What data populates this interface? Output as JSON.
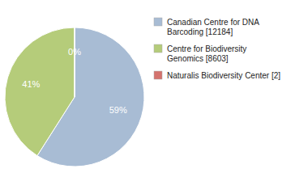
{
  "chart_data": {
    "type": "pie",
    "categories": [
      "Canadian Centre for DNA\nBarcoding [12184]",
      "Centre for Biodiversity\nGenomics [8603]",
      "Naturalis Biodiversity Center [2]"
    ],
    "values": [
      59,
      41,
      0
    ],
    "value_labels": [
      "59%",
      "41%",
      "0%"
    ],
    "colors": [
      "#a8bcd4",
      "#b5cc7a",
      "#d4736e"
    ],
    "data_labels": true,
    "legend": "right"
  }
}
